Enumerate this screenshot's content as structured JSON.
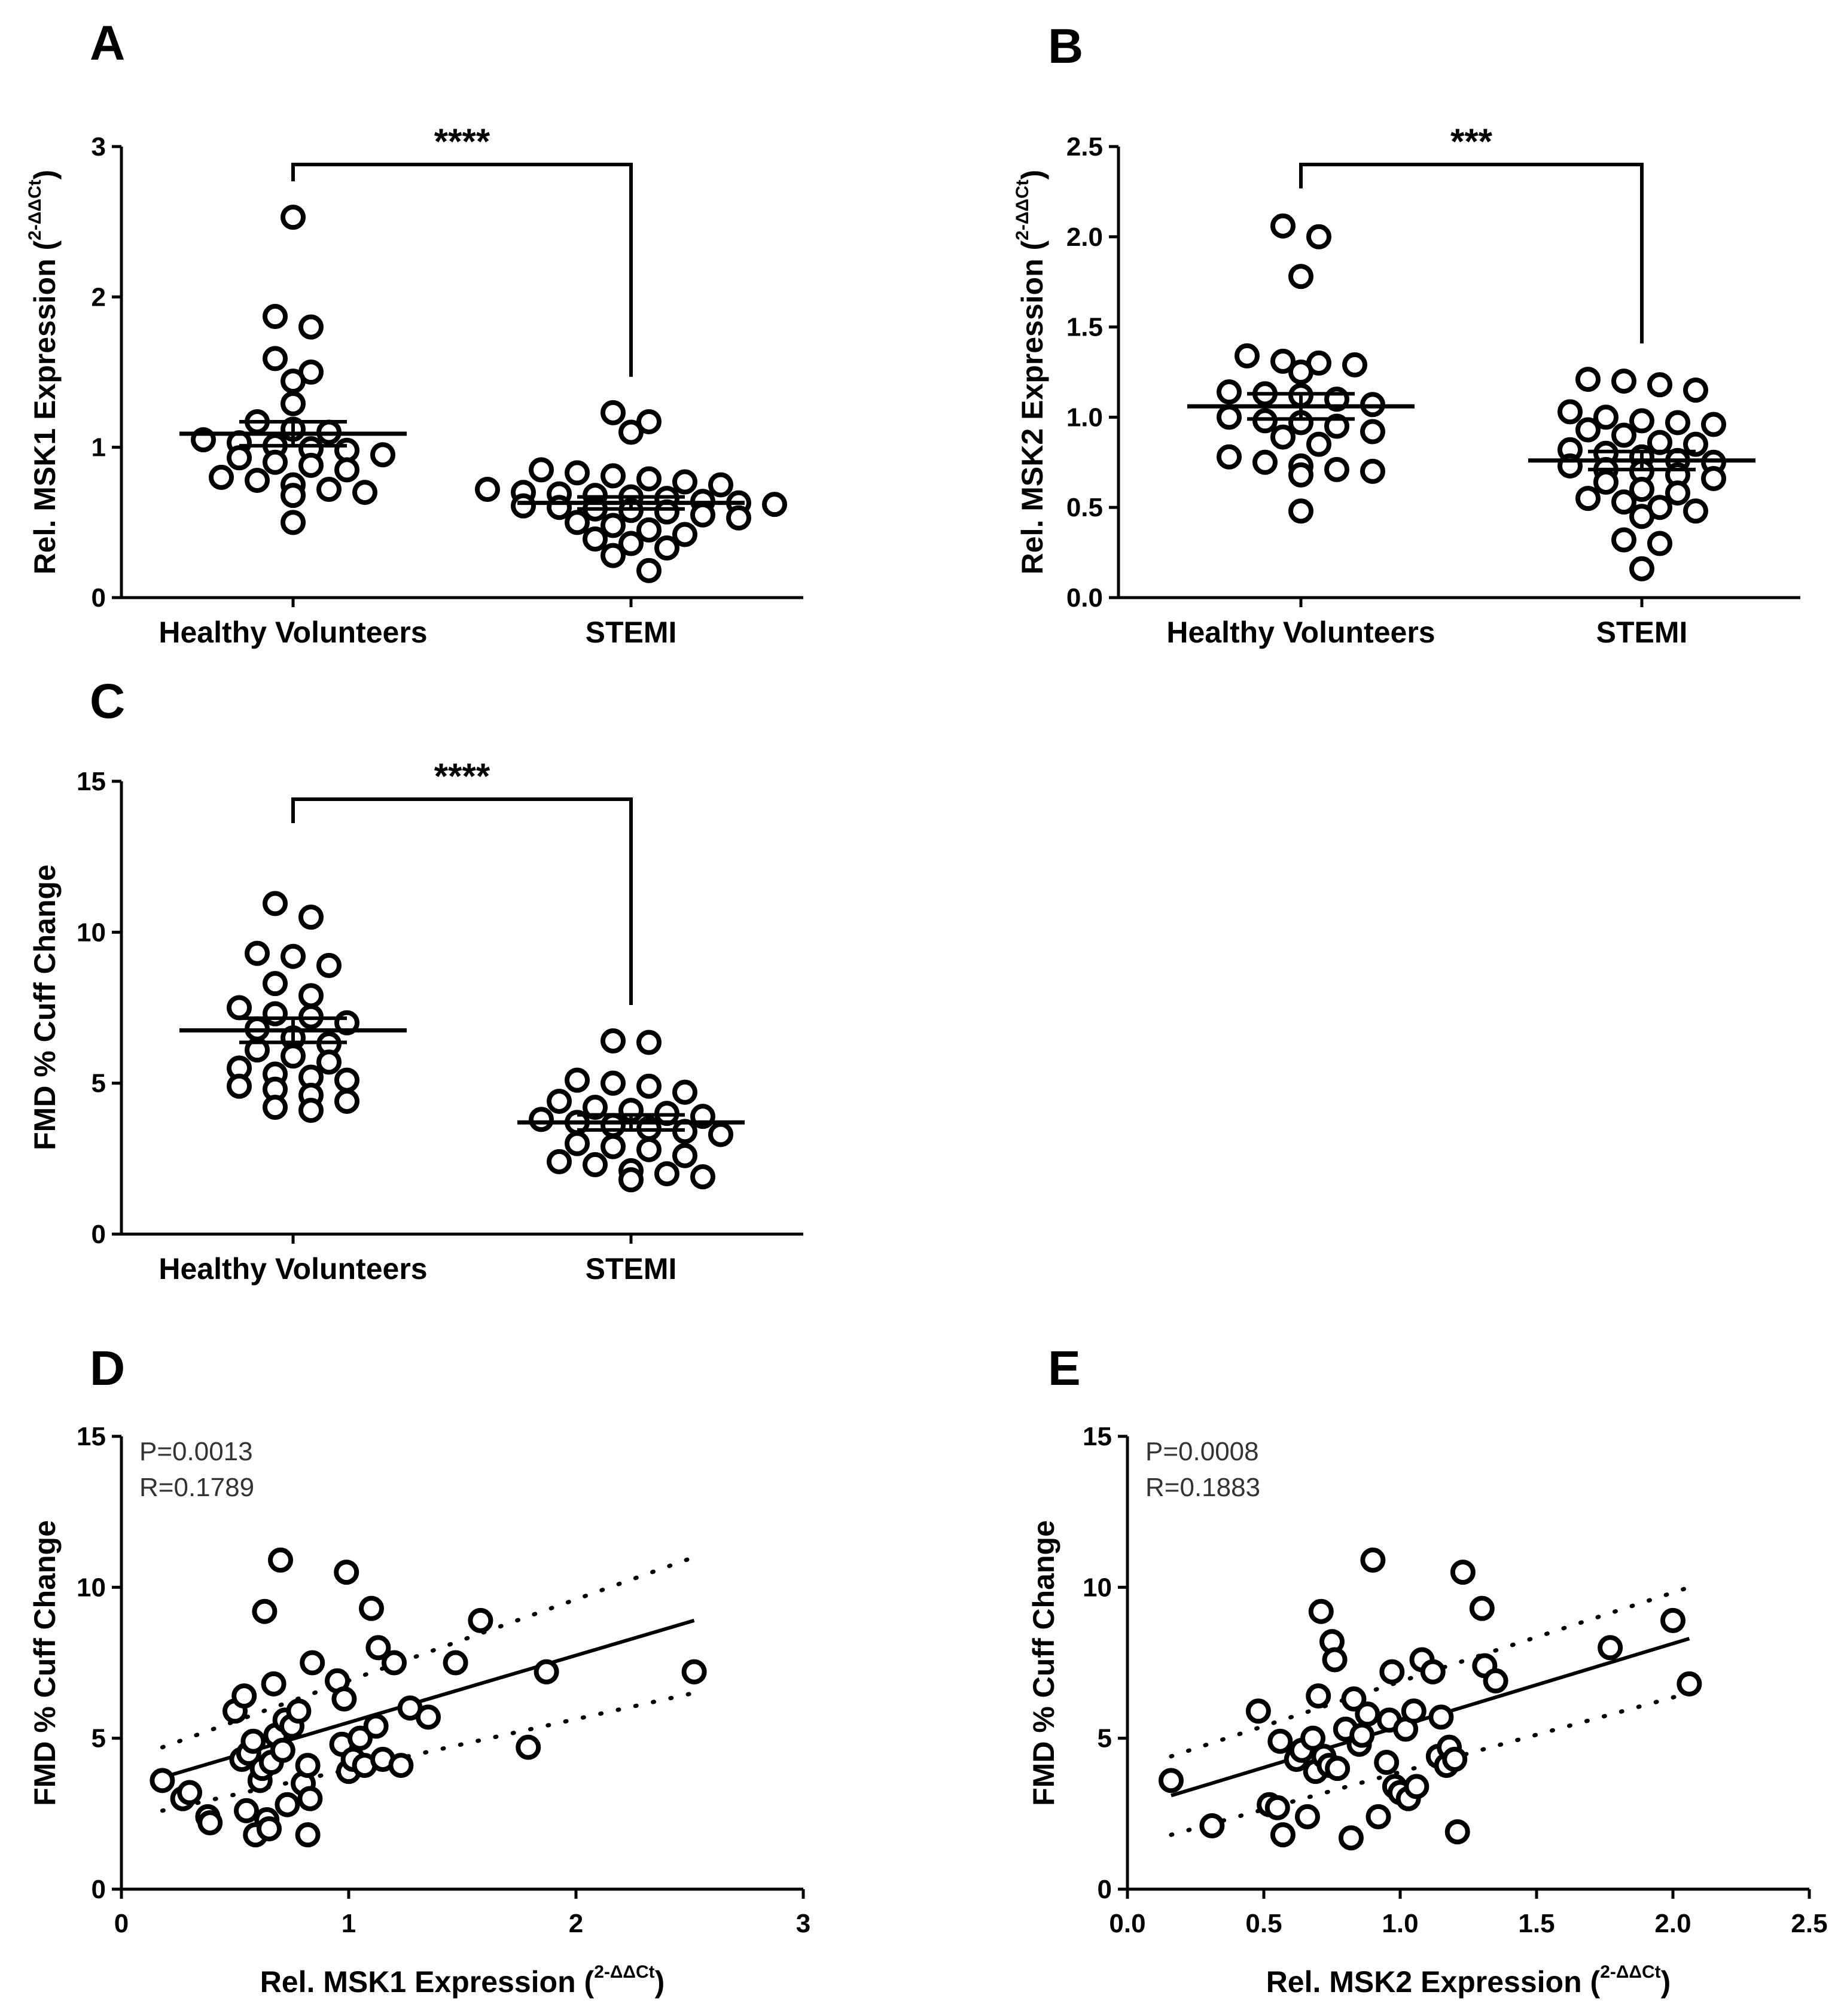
{
  "chart_data": [
    {
      "id": "A",
      "panel_label": "A",
      "type": "scatter",
      "title": "",
      "xlabel": "",
      "ylabel": "Rel. MSK1 Expression (2-ΔΔCt)",
      "ylabel_main": "Rel. MSK1 Expression (",
      "ylabel_sup": "2-ΔΔCt",
      "ylabel_end": ")",
      "categories": [
        "Healthy Volunteers",
        "STEMI"
      ],
      "ylim": [
        0,
        3
      ],
      "yticks": [
        "0",
        "1",
        "2",
        "3"
      ],
      "significance": "****",
      "means": [
        1.09,
        0.63
      ],
      "sem": [
        0.08,
        0.04
      ],
      "series": [
        {
          "name": "Healthy Volunteers",
          "values": [
            2.53,
            1.87,
            1.8,
            1.59,
            1.5,
            1.44,
            1.29,
            1.17,
            1.12,
            1.1,
            1.05,
            1.03,
            1.01,
            0.99,
            0.98,
            0.95,
            0.93,
            0.9,
            0.88,
            0.85,
            0.8,
            0.78,
            0.75,
            0.72,
            0.7,
            0.68,
            0.5
          ]
        },
        {
          "name": "STEMI",
          "values": [
            1.23,
            1.17,
            1.1,
            0.85,
            0.83,
            0.81,
            0.79,
            0.77,
            0.75,
            0.72,
            0.7,
            0.69,
            0.68,
            0.67,
            0.66,
            0.64,
            0.63,
            0.62,
            0.61,
            0.6,
            0.59,
            0.58,
            0.57,
            0.55,
            0.53,
            0.5,
            0.48,
            0.45,
            0.42,
            0.39,
            0.36,
            0.33,
            0.28,
            0.18
          ]
        }
      ]
    },
    {
      "id": "B",
      "panel_label": "B",
      "type": "scatter",
      "title": "",
      "xlabel": "",
      "ylabel": "Rel. MSK2 Expression (2-ΔΔCt)",
      "ylabel_main": "Rel. MSK2 Expression (",
      "ylabel_sup": "2-ΔΔCt",
      "ylabel_end": ")",
      "categories": [
        "Healthy Volunteers",
        "STEMI"
      ],
      "ylim": [
        0,
        2.5
      ],
      "yticks": [
        "0.0",
        "0.5",
        "1.0",
        "1.5",
        "2.0",
        "2.5"
      ],
      "significance": "***",
      "means": [
        1.06,
        0.76
      ],
      "sem": [
        0.07,
        0.05
      ],
      "series": [
        {
          "name": "Healthy Volunteers",
          "values": [
            2.06,
            2.0,
            1.78,
            1.34,
            1.31,
            1.3,
            1.29,
            1.25,
            1.14,
            1.13,
            1.12,
            1.1,
            1.07,
            1.0,
            0.98,
            0.97,
            0.95,
            0.92,
            0.89,
            0.85,
            0.78,
            0.75,
            0.73,
            0.71,
            0.7,
            0.68,
            0.48
          ]
        },
        {
          "name": "STEMI",
          "values": [
            1.21,
            1.2,
            1.18,
            1.15,
            1.03,
            1.0,
            0.98,
            0.97,
            0.96,
            0.93,
            0.9,
            0.86,
            0.85,
            0.82,
            0.8,
            0.78,
            0.76,
            0.75,
            0.73,
            0.71,
            0.7,
            0.68,
            0.66,
            0.64,
            0.6,
            0.58,
            0.55,
            0.53,
            0.5,
            0.48,
            0.45,
            0.32,
            0.3,
            0.16
          ]
        }
      ]
    },
    {
      "id": "C",
      "panel_label": "C",
      "type": "scatter",
      "title": "",
      "xlabel": "",
      "ylabel": "FMD % Cuff Change",
      "categories": [
        "Healthy Volunteers",
        "STEMI"
      ],
      "ylim": [
        0,
        15
      ],
      "yticks": [
        "0",
        "5",
        "10",
        "15"
      ],
      "significance": "****",
      "means": [
        6.75,
        3.7
      ],
      "sem": [
        0.4,
        0.25
      ],
      "series": [
        {
          "name": "Healthy Volunteers",
          "values": [
            10.95,
            10.5,
            9.3,
            9.2,
            8.9,
            8.3,
            7.9,
            7.5,
            7.3,
            7.2,
            7.0,
            6.8,
            6.5,
            6.3,
            6.1,
            5.9,
            5.7,
            5.5,
            5.3,
            5.2,
            5.1,
            4.9,
            4.8,
            4.6,
            4.4,
            4.2,
            4.1
          ]
        },
        {
          "name": "STEMI",
          "values": [
            6.4,
            6.35,
            5.1,
            5.0,
            4.9,
            4.7,
            4.4,
            4.2,
            4.1,
            4.0,
            3.9,
            3.8,
            3.7,
            3.6,
            3.5,
            3.4,
            3.3,
            3.0,
            2.9,
            2.8,
            2.6,
            2.4,
            2.3,
            2.1,
            2.0,
            1.9,
            1.8
          ]
        }
      ]
    },
    {
      "id": "D",
      "panel_label": "D",
      "type": "scatter",
      "title": "",
      "xlabel": "Rel. MSK1 Expression (2-ΔΔCt)",
      "xlabel_main": "Rel. MSK1 Expression (",
      "xlabel_sup": "2-ΔΔCt",
      "xlabel_end": ")",
      "ylabel": "FMD % Cuff Change",
      "xlim": [
        0,
        3
      ],
      "ylim": [
        0,
        15
      ],
      "xticks": [
        "0",
        "1",
        "2",
        "3"
      ],
      "yticks": [
        "0",
        "5",
        "10",
        "15"
      ],
      "stats": [
        "P=0.0013",
        "R=0.1789"
      ],
      "regression": {
        "x": [
          0.18,
          2.52
        ],
        "y": [
          3.7,
          8.9
        ]
      },
      "ci_upper": {
        "x": [
          0.18,
          2.52
        ],
        "y": [
          4.7,
          11.0
        ]
      },
      "ci_lower": {
        "x": [
          0.18,
          2.52
        ],
        "y": [
          2.6,
          6.5
        ]
      },
      "points": [
        [
          0.18,
          3.6
        ],
        [
          0.27,
          3.0
        ],
        [
          0.3,
          3.2
        ],
        [
          0.38,
          2.4
        ],
        [
          0.39,
          2.2
        ],
        [
          0.5,
          5.9
        ],
        [
          0.53,
          4.3
        ],
        [
          0.54,
          6.4
        ],
        [
          0.55,
          2.6
        ],
        [
          0.56,
          4.5
        ],
        [
          0.58,
          4.9
        ],
        [
          0.59,
          1.8
        ],
        [
          0.61,
          3.6
        ],
        [
          0.62,
          4.0
        ],
        [
          0.63,
          9.2
        ],
        [
          0.64,
          2.3
        ],
        [
          0.65,
          2.0
        ],
        [
          0.66,
          4.2
        ],
        [
          0.67,
          6.8
        ],
        [
          0.68,
          5.1
        ],
        [
          0.7,
          10.9
        ],
        [
          0.71,
          4.6
        ],
        [
          0.72,
          5.6
        ],
        [
          0.73,
          2.8
        ],
        [
          0.75,
          5.4
        ],
        [
          0.78,
          5.9
        ],
        [
          0.8,
          3.5
        ],
        [
          0.82,
          4.1
        ],
        [
          0.83,
          3.0
        ],
        [
          0.84,
          7.5
        ],
        [
          0.82,
          1.8
        ],
        [
          0.95,
          6.9
        ],
        [
          0.97,
          4.8
        ],
        [
          0.98,
          6.3
        ],
        [
          0.99,
          10.5
        ],
        [
          1.0,
          3.9
        ],
        [
          1.02,
          4.3
        ],
        [
          1.05,
          5.0
        ],
        [
          1.07,
          4.1
        ],
        [
          1.1,
          9.3
        ],
        [
          1.12,
          5.4
        ],
        [
          1.13,
          8.0
        ],
        [
          1.15,
          4.3
        ],
        [
          1.2,
          7.5
        ],
        [
          1.23,
          4.1
        ],
        [
          1.27,
          6.0
        ],
        [
          1.35,
          5.7
        ],
        [
          1.47,
          7.5
        ],
        [
          1.58,
          8.9
        ],
        [
          1.79,
          4.7
        ],
        [
          1.87,
          7.2
        ],
        [
          2.52,
          7.2
        ]
      ]
    },
    {
      "id": "E",
      "panel_label": "E",
      "type": "scatter",
      "title": "",
      "xlabel": "Rel. MSK2 Expression (2-ΔΔCt)",
      "xlabel_main": "Rel. MSK2 Expression (",
      "xlabel_sup": "2-ΔΔCt",
      "xlabel_end": ")",
      "ylabel": "FMD % Cuff Change",
      "xlim": [
        0,
        2.5
      ],
      "ylim": [
        0,
        15
      ],
      "xticks": [
        "0.0",
        "0.5",
        "1.0",
        "1.5",
        "2.0",
        "2.5"
      ],
      "yticks": [
        "0",
        "5",
        "10",
        "15"
      ],
      "stats": [
        "P=0.0008",
        "R=0.1883"
      ],
      "regression": {
        "x": [
          0.16,
          2.06
        ],
        "y": [
          3.1,
          8.3
        ]
      },
      "ci_upper": {
        "x": [
          0.16,
          2.06
        ],
        "y": [
          4.4,
          10.0
        ]
      },
      "ci_lower": {
        "x": [
          0.16,
          2.06
        ],
        "y": [
          1.8,
          6.5
        ]
      },
      "points": [
        [
          0.16,
          3.6
        ],
        [
          0.31,
          2.1
        ],
        [
          0.48,
          5.9
        ],
        [
          0.52,
          2.8
        ],
        [
          0.55,
          2.7
        ],
        [
          0.56,
          4.9
        ],
        [
          0.57,
          1.8
        ],
        [
          0.62,
          4.3
        ],
        [
          0.64,
          4.6
        ],
        [
          0.66,
          2.4
        ],
        [
          0.68,
          5.0
        ],
        [
          0.69,
          3.9
        ],
        [
          0.7,
          6.4
        ],
        [
          0.71,
          9.2
        ],
        [
          0.72,
          4.4
        ],
        [
          0.74,
          4.1
        ],
        [
          0.75,
          8.2
        ],
        [
          0.76,
          7.6
        ],
        [
          0.77,
          4.0
        ],
        [
          0.8,
          5.3
        ],
        [
          0.82,
          1.7
        ],
        [
          0.83,
          6.3
        ],
        [
          0.85,
          4.8
        ],
        [
          0.86,
          5.1
        ],
        [
          0.88,
          5.8
        ],
        [
          0.9,
          10.9
        ],
        [
          0.92,
          2.4
        ],
        [
          0.95,
          4.2
        ],
        [
          0.96,
          5.6
        ],
        [
          0.97,
          7.2
        ],
        [
          0.98,
          3.4
        ],
        [
          1.0,
          3.2
        ],
        [
          1.02,
          5.3
        ],
        [
          1.03,
          3.0
        ],
        [
          1.05,
          5.9
        ],
        [
          1.06,
          3.4
        ],
        [
          1.08,
          7.6
        ],
        [
          1.12,
          7.2
        ],
        [
          1.14,
          4.4
        ],
        [
          1.15,
          5.7
        ],
        [
          1.17,
          4.1
        ],
        [
          1.18,
          4.7
        ],
        [
          1.2,
          4.3
        ],
        [
          1.21,
          1.9
        ],
        [
          1.23,
          10.5
        ],
        [
          1.3,
          9.3
        ],
        [
          1.31,
          7.4
        ],
        [
          1.35,
          6.9
        ],
        [
          1.77,
          8.0
        ],
        [
          2.0,
          8.9
        ],
        [
          2.06,
          6.8
        ]
      ]
    }
  ]
}
